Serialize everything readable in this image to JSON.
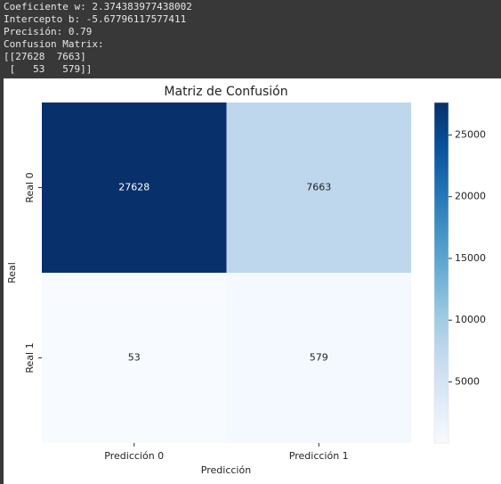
{
  "console": [
    "Coeficiente w: 2.374383977438002",
    "Intercepto b: -5.67796117577411",
    "Precisión: 0.79",
    "Confusion Matrix:",
    "[[27628  7663]",
    " [   53   579]]"
  ],
  "chart_data": {
    "type": "heatmap",
    "title": "Matriz de Confusión",
    "x_label": "Predicción",
    "y_label": "Real",
    "x_categories": [
      "Predicción 0",
      "Predicción 1"
    ],
    "y_categories": [
      "Real 0",
      "Real 1"
    ],
    "values": [
      [
        27628,
        7663
      ],
      [
        53,
        579
      ]
    ],
    "cmap": "Blues",
    "clim": [
      53,
      27628
    ],
    "cticks": [
      5000,
      10000,
      15000,
      20000,
      25000
    ]
  }
}
